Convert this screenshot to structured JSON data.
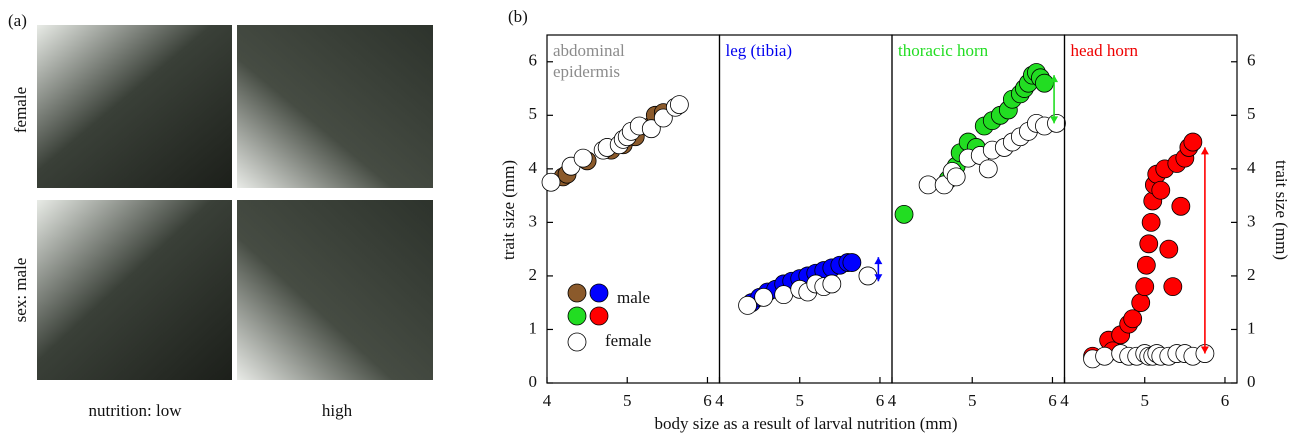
{
  "panel_a": {
    "label": "(a)",
    "row_labels": [
      "female",
      "sex: male"
    ],
    "column_labels": [
      "nutrition: low",
      "high"
    ]
  },
  "panel_b": {
    "label": "(b)",
    "x_label": "body size as a result of larval nutrition (mm)",
    "y_label": "trait size (mm)"
  },
  "chart_data": [
    {
      "type": "scatter",
      "title": [
        "abdominal",
        "epidermis"
      ],
      "title_color": "#8c8c8c",
      "xlim": [
        4,
        6.15
      ],
      "xticks": [
        4,
        5,
        6
      ],
      "ylim": [
        0,
        6.5
      ],
      "yticks": [
        0,
        1,
        2,
        3,
        4,
        5,
        6
      ],
      "series": [
        {
          "name": "male",
          "color": "#8b5a2b",
          "x": [
            4.2,
            4.25,
            4.5,
            4.8,
            4.95,
            5.1,
            5.3,
            5.35,
            5.45
          ],
          "values": [
            3.85,
            3.9,
            4.15,
            4.35,
            4.45,
            4.6,
            4.8,
            5.0,
            5.05
          ]
        },
        {
          "name": "female",
          "color": "#ffffff",
          "x": [
            4.05,
            4.3,
            4.45,
            4.7,
            4.75,
            4.9,
            4.95,
            5.0,
            5.05,
            5.15,
            5.3,
            5.45,
            5.6,
            5.65
          ],
          "values": [
            3.75,
            4.05,
            4.2,
            4.35,
            4.4,
            4.45,
            4.55,
            4.6,
            4.7,
            4.8,
            4.75,
            4.95,
            5.15,
            5.2
          ]
        }
      ]
    },
    {
      "type": "scatter",
      "title": [
        "leg (tibia)"
      ],
      "title_color": "#0000ee",
      "xlim": [
        4,
        6.15
      ],
      "xticks": [
        4,
        5,
        6
      ],
      "ylim": [
        0,
        6.5
      ],
      "yticks": [
        0,
        1,
        2,
        3,
        4,
        5,
        6
      ],
      "arrow": {
        "x": 5.98,
        "from": 1.9,
        "to": 2.35
      },
      "series": [
        {
          "name": "male",
          "color": "#0000ff",
          "x": [
            4.4,
            4.5,
            4.6,
            4.7,
            4.8,
            4.9,
            5.0,
            5.1,
            5.2,
            5.3,
            5.4,
            5.5,
            5.6,
            5.65
          ],
          "values": [
            1.5,
            1.6,
            1.7,
            1.75,
            1.85,
            1.9,
            1.95,
            2.0,
            2.05,
            2.1,
            2.15,
            2.2,
            2.25,
            2.25
          ]
        },
        {
          "name": "female",
          "color": "#ffffff",
          "x": [
            4.35,
            4.55,
            4.8,
            5.0,
            5.1,
            5.2,
            5.3,
            5.4,
            5.85
          ],
          "values": [
            1.45,
            1.6,
            1.65,
            1.75,
            1.7,
            1.85,
            1.8,
            1.85,
            2.0
          ]
        }
      ]
    },
    {
      "type": "scatter",
      "title": [
        "thoracic horn"
      ],
      "title_color": "#22dd22",
      "xlim": [
        4,
        6.15
      ],
      "xticks": [
        4,
        5,
        6
      ],
      "ylim": [
        0,
        6.5
      ],
      "yticks": [
        0,
        1,
        2,
        3,
        4,
        5,
        6
      ],
      "arrow": {
        "x": 6.02,
        "from": 4.85,
        "to": 5.75
      },
      "series": [
        {
          "name": "male",
          "color": "#22dd22",
          "x": [
            4.15,
            4.7,
            4.8,
            4.85,
            4.95,
            5.05,
            5.15,
            5.25,
            5.35,
            5.45,
            5.5,
            5.6,
            5.65,
            5.7,
            5.75,
            5.8,
            5.85,
            5.9
          ],
          "values": [
            3.15,
            3.8,
            4.05,
            4.3,
            4.5,
            4.4,
            4.8,
            4.9,
            5.0,
            5.1,
            5.3,
            5.4,
            5.5,
            5.6,
            5.75,
            5.8,
            5.7,
            5.6
          ]
        },
        {
          "name": "female",
          "color": "#ffffff",
          "x": [
            4.45,
            4.65,
            4.75,
            4.8,
            4.95,
            5.1,
            5.2,
            5.25,
            5.4,
            5.5,
            5.6,
            5.7,
            5.8,
            5.9,
            6.05
          ],
          "values": [
            3.7,
            3.7,
            3.95,
            3.85,
            4.2,
            4.25,
            4.0,
            4.35,
            4.4,
            4.5,
            4.6,
            4.7,
            4.85,
            4.8,
            4.85
          ]
        }
      ]
    },
    {
      "type": "scatter",
      "title": [
        "head horn"
      ],
      "title_color": "#ee0000",
      "xlim": [
        4,
        6.15
      ],
      "xticks": [
        4,
        5,
        6
      ],
      "ylim": [
        0,
        6.5
      ],
      "yticks": [
        0,
        1,
        2,
        3,
        4,
        5,
        6
      ],
      "arrow": {
        "x": 5.75,
        "from": 0.55,
        "to": 4.4
      },
      "series": [
        {
          "name": "male",
          "color": "#ff0000",
          "x": [
            4.35,
            4.55,
            4.6,
            4.7,
            4.8,
            4.85,
            4.95,
            5.0,
            5.02,
            5.05,
            5.08,
            5.1,
            5.12,
            5.15,
            5.2,
            5.25,
            5.3,
            5.35,
            5.4,
            5.45,
            5.5,
            5.55,
            5.6
          ],
          "values": [
            0.5,
            0.8,
            0.6,
            0.9,
            1.1,
            1.2,
            1.5,
            1.8,
            2.2,
            2.6,
            3.0,
            3.4,
            3.7,
            3.9,
            3.6,
            4.0,
            2.5,
            1.8,
            4.1,
            3.3,
            4.2,
            4.4,
            4.5
          ]
        },
        {
          "name": "female",
          "color": "#ffffff",
          "x": [
            4.35,
            4.5,
            4.7,
            4.8,
            4.9,
            5.0,
            5.05,
            5.1,
            5.15,
            5.2,
            5.3,
            5.4,
            5.5,
            5.6,
            5.75
          ],
          "values": [
            0.45,
            0.5,
            0.55,
            0.5,
            0.5,
            0.55,
            0.5,
            0.5,
            0.55,
            0.5,
            0.5,
            0.55,
            0.55,
            0.5,
            0.55
          ]
        }
      ]
    }
  ]
}
